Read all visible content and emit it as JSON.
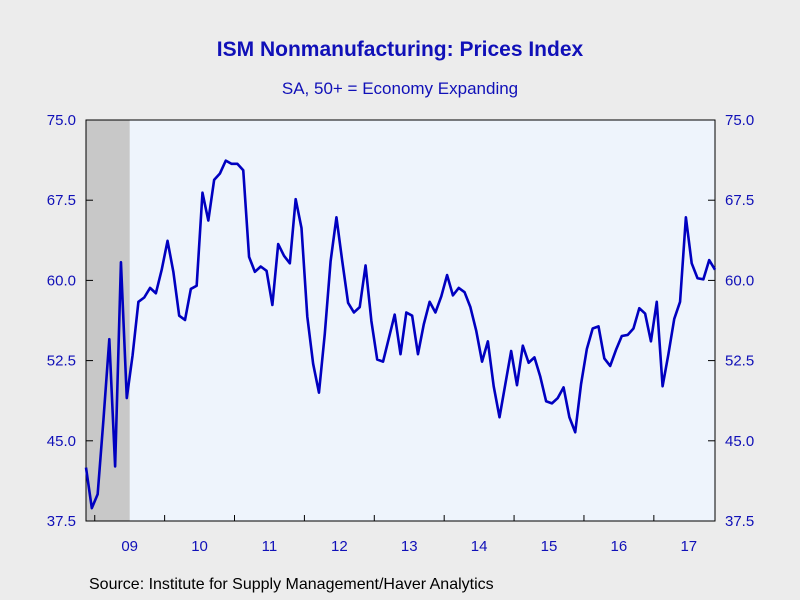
{
  "chart_data": {
    "type": "line",
    "title": "ISM Nonmanufacturing: Prices Index",
    "subtitle": "SA, 50+ = Economy Expanding",
    "source": "Source:  Institute for Supply Management/Haver Analytics",
    "ylim": [
      37.5,
      75.0
    ],
    "yticks": [
      "37.5",
      "45.0",
      "52.5",
      "60.0",
      "67.5",
      "75.0"
    ],
    "xtick_labels": [
      "09",
      "10",
      "11",
      "12",
      "13",
      "14",
      "15",
      "16",
      "17"
    ],
    "x_start": "2008-11",
    "recession_shading": {
      "start": "2008-11",
      "end": "2009-06",
      "color": "#c8c8c8"
    },
    "grid": false,
    "colors": {
      "line": "#0000c0",
      "plot_bg": "#eef4fc",
      "axis": "#1010b8"
    },
    "series": [
      {
        "values": [
          42.5,
          38.7,
          40.0,
          47.0,
          54.5,
          42.6,
          61.7,
          49.0,
          53.0,
          58.0,
          58.4,
          59.3,
          58.8,
          61.0,
          63.7,
          60.8,
          56.7,
          56.3,
          59.2,
          59.5,
          68.2,
          65.6,
          69.4,
          70.0,
          71.2,
          70.9,
          70.9,
          70.3,
          62.2,
          60.8,
          61.3,
          60.9,
          57.7,
          63.4,
          62.3,
          61.6,
          67.6,
          64.9,
          56.6,
          52.2,
          49.5,
          55.0,
          61.8,
          65.9,
          61.8,
          57.9,
          57.0,
          57.5,
          61.4,
          56.2,
          52.6,
          52.4,
          54.6,
          56.8,
          53.1,
          57.0,
          56.7,
          53.1,
          55.9,
          58.0,
          57.0,
          58.5,
          60.5,
          58.6,
          59.3,
          58.9,
          57.5,
          55.3,
          52.4,
          54.3,
          50.1,
          47.2,
          50.3,
          53.4,
          50.2,
          53.9,
          52.3,
          52.8,
          51.0,
          48.7,
          48.5,
          49.0,
          50.0,
          47.2,
          45.8,
          50.3,
          53.6,
          55.5,
          55.7,
          52.7,
          52.0,
          53.5,
          54.8,
          54.9,
          55.5,
          57.4,
          56.9,
          54.3,
          58.0,
          50.1,
          53.1,
          56.4,
          58.0,
          65.9,
          61.6,
          60.2,
          60.1,
          61.9,
          61.0
        ]
      }
    ]
  }
}
